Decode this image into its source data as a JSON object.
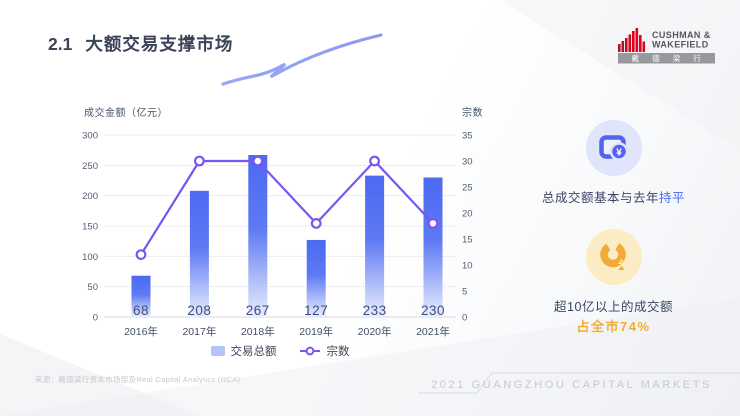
{
  "slide": {
    "section_number": "2.1",
    "title": "大额交易支撑市场"
  },
  "logo": {
    "name_line1": "CUSHMAN &",
    "name_line2": "WAKEFIELD",
    "cn_name": "戴 德 梁 行",
    "brand_red": "#e0001b"
  },
  "chart_data": {
    "type": "bar",
    "categories": [
      "2016年",
      "2017年",
      "2018年",
      "2019年",
      "2020年",
      "2021年"
    ],
    "series": [
      {
        "name": "交易总额",
        "type": "bar",
        "values": [
          68,
          208,
          267,
          127,
          233,
          230
        ]
      },
      {
        "name": "宗数",
        "type": "line",
        "values": [
          12,
          30,
          30,
          18,
          30,
          18
        ]
      }
    ],
    "left_axis": {
      "title": "成交金额（亿元）",
      "min": 0,
      "max": 300,
      "step": 50
    },
    "right_axis": {
      "title": "宗数",
      "min": 0,
      "max": 35,
      "step": 5
    },
    "grid": true,
    "legend_position": "bottom",
    "colors": {
      "bar_top": "#4c6af2",
      "bar_mid": "#5d79f3",
      "bar_bottom": "#e9eefd",
      "line": "#7a55f2",
      "value_label": "#3e4d80",
      "legend_swatch": "#b4c3f8"
    }
  },
  "insights": [
    {
      "icon": "wallet-yuan-icon",
      "main": "总成交额基本与去年",
      "accent": "持平",
      "accent_color": "#4b66f0"
    },
    {
      "icon": "donut-chart-icon",
      "line1": "超10亿以上的成交额",
      "line2": "占全市74%",
      "accent_color": "#f2ad33"
    }
  ],
  "footer": {
    "source": "来源：戴德梁行资本市场部及Real Capital Analytics (RCA)",
    "report": "2021 GUANGZHOU CAPITAL MARKETS"
  }
}
